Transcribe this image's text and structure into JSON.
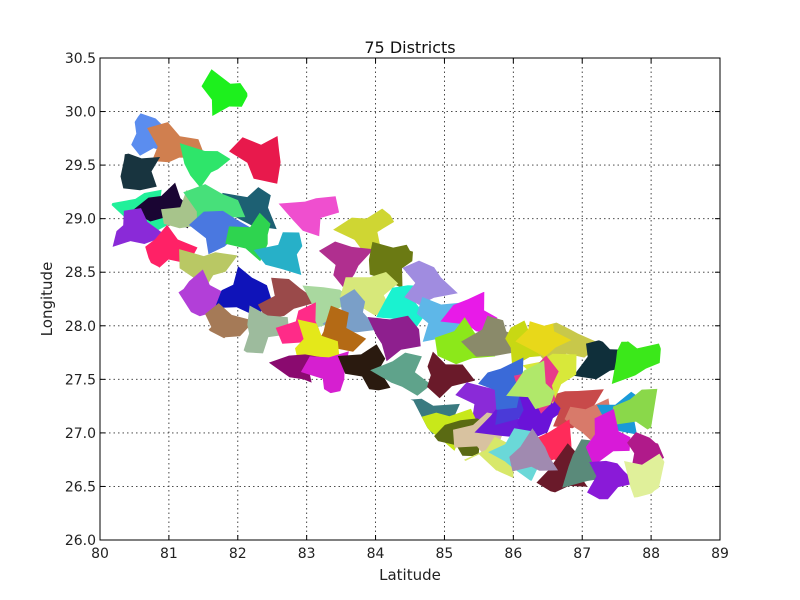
{
  "chart_data": {
    "type": "choropleth-map",
    "title": "75 Districts",
    "xlabel": "Latitude",
    "ylabel": "Longitude",
    "xlim": [
      80,
      89
    ],
    "ylim": [
      26.0,
      30.5
    ],
    "xticks": [
      "80",
      "81",
      "82",
      "83",
      "84",
      "85",
      "86",
      "87",
      "88",
      "89"
    ],
    "yticks": [
      "26.0",
      "26.5",
      "27.0",
      "27.5",
      "28.0",
      "28.5",
      "29.0",
      "29.5",
      "30.0",
      "30.5"
    ],
    "grid": true,
    "district_count": 75,
    "regions": [
      {
        "color": "#5b8def",
        "c": [
          80.75,
          29.75
        ]
      },
      {
        "color": "#d07f4f",
        "c": [
          81.05,
          29.67
        ]
      },
      {
        "color": "#1df01d",
        "c": [
          81.85,
          30.15
        ]
      },
      {
        "color": "#2ee56a",
        "c": [
          81.55,
          29.5
        ]
      },
      {
        "color": "#18343f",
        "c": [
          80.55,
          29.45
        ]
      },
      {
        "color": "#e8194c",
        "c": [
          82.35,
          29.6
        ]
      },
      {
        "color": "#1d6073",
        "c": [
          82.2,
          29.12
        ]
      },
      {
        "color": "#21f09a",
        "c": [
          80.65,
          29.1
        ]
      },
      {
        "color": "#1a0533",
        "c": [
          80.95,
          29.12
        ]
      },
      {
        "color": "#a7c48b",
        "c": [
          81.25,
          29.05
        ]
      },
      {
        "color": "#8a2ad8",
        "c": [
          80.45,
          28.9
        ]
      },
      {
        "color": "#ff2166",
        "c": [
          80.95,
          28.7
        ]
      },
      {
        "color": "#47e07a",
        "c": [
          81.65,
          29.08
        ]
      },
      {
        "color": "#4a78e0",
        "c": [
          81.75,
          28.87
        ]
      },
      {
        "color": "#b9c864",
        "c": [
          81.55,
          28.55
        ]
      },
      {
        "color": "#ef4fcf",
        "c": [
          83.1,
          29.05
        ]
      },
      {
        "color": "#cfd633",
        "c": [
          83.9,
          28.9
        ]
      },
      {
        "color": "#2ed44f",
        "c": [
          82.25,
          28.85
        ]
      },
      {
        "color": "#27b0c8",
        "c": [
          82.7,
          28.7
        ]
      },
      {
        "color": "#b23fd8",
        "c": [
          81.4,
          28.3
        ]
      },
      {
        "color": "#0f13b9",
        "c": [
          82.05,
          28.32
        ]
      },
      {
        "color": "#9a4a4a",
        "c": [
          82.65,
          28.25
        ]
      },
      {
        "color": "#a57a57",
        "c": [
          81.75,
          27.98
        ]
      },
      {
        "color": "#9dbb9d",
        "c": [
          82.35,
          27.95
        ]
      },
      {
        "color": "#a9d89f",
        "c": [
          83.25,
          28.18
        ]
      },
      {
        "color": "#b02f8f",
        "c": [
          83.55,
          28.58
        ]
      },
      {
        "color": "#6b7a13",
        "c": [
          84.25,
          28.58
        ]
      },
      {
        "color": "#d7e87a",
        "c": [
          84.0,
          28.3
        ]
      },
      {
        "color": "#1af2d0",
        "c": [
          84.45,
          28.2
        ]
      },
      {
        "color": "#ff2b88",
        "c": [
          82.95,
          28.0
        ]
      },
      {
        "color": "#7a9fc8",
        "c": [
          83.65,
          28.12
        ]
      },
      {
        "color": "#b46a15",
        "c": [
          83.45,
          27.95
        ]
      },
      {
        "color": "#e4e81a",
        "c": [
          83.1,
          27.85
        ]
      },
      {
        "color": "#a08ce0",
        "c": [
          84.7,
          28.4
        ]
      },
      {
        "color": "#5eb7e8",
        "c": [
          84.9,
          28.05
        ]
      },
      {
        "color": "#8e1f8e",
        "c": [
          84.25,
          27.9
        ]
      },
      {
        "color": "#8a0a6f",
        "c": [
          82.9,
          27.55
        ]
      },
      {
        "color": "#d61fd0",
        "c": [
          83.35,
          27.55
        ]
      },
      {
        "color": "#2a1a0f",
        "c": [
          83.9,
          27.6
        ]
      },
      {
        "color": "#5fa38b",
        "c": [
          84.45,
          27.55
        ]
      },
      {
        "color": "#e81ae8",
        "c": [
          85.45,
          28.1
        ]
      },
      {
        "color": "#8ce81a",
        "c": [
          85.3,
          27.85
        ]
      },
      {
        "color": "#8a8a6a",
        "c": [
          85.75,
          27.9
        ]
      },
      {
        "color": "#c8d813",
        "c": [
          86.15,
          27.85
        ]
      },
      {
        "color": "#6a1a2a",
        "c": [
          84.95,
          27.55
        ]
      },
      {
        "color": "#8a2ad8",
        "c": [
          85.55,
          27.3
        ]
      },
      {
        "color": "#3a7a80",
        "c": [
          84.75,
          27.15
        ]
      },
      {
        "color": "#c8e81a",
        "c": [
          85.05,
          27.05
        ]
      },
      {
        "color": "#5a6a13",
        "c": [
          85.3,
          26.95
        ]
      },
      {
        "color": "#d8c2a0",
        "c": [
          85.55,
          26.95
        ]
      },
      {
        "color": "#d8e86a",
        "c": [
          85.8,
          26.75
        ]
      },
      {
        "color": "#6a1ad8",
        "c": [
          85.95,
          27.1
        ]
      },
      {
        "color": "#4a3ad8",
        "c": [
          86.15,
          27.25
        ]
      },
      {
        "color": "#c8c84a",
        "c": [
          86.75,
          27.85
        ]
      },
      {
        "color": "#0f2f3a",
        "c": [
          87.3,
          27.7
        ]
      },
      {
        "color": "#3be81a",
        "c": [
          87.75,
          27.7
        ]
      },
      {
        "color": "#6a13d8",
        "c": [
          86.35,
          27.2
        ]
      },
      {
        "color": "#c84a4a",
        "c": [
          86.85,
          27.25
        ]
      },
      {
        "color": "#d87a6a",
        "c": [
          87.05,
          27.1
        ]
      },
      {
        "color": "#1a9ad8",
        "c": [
          87.55,
          27.15
        ]
      },
      {
        "color": "#8ad84a",
        "c": [
          87.85,
          27.2
        ]
      },
      {
        "color": "#ff2b5a",
        "c": [
          86.6,
          26.85
        ]
      },
      {
        "color": "#6a1a2a",
        "c": [
          86.75,
          26.62
        ]
      },
      {
        "color": "#5a8a7a",
        "c": [
          87.1,
          26.7
        ]
      },
      {
        "color": "#d81ad8",
        "c": [
          87.4,
          26.95
        ]
      },
      {
        "color": "#8a1ad8",
        "c": [
          87.4,
          26.6
        ]
      },
      {
        "color": "#b01a8a",
        "c": [
          87.95,
          26.85
        ]
      },
      {
        "color": "#e0f09a",
        "c": [
          87.9,
          26.6
        ]
      },
      {
        "color": "#d8e83a",
        "c": [
          86.5,
          27.55
        ]
      },
      {
        "color": "#3a6ad8",
        "c": [
          85.85,
          27.45
        ]
      },
      {
        "color": "#e83a8a",
        "c": [
          86.35,
          27.45
        ]
      },
      {
        "color": "#6ad8d8",
        "c": [
          86.05,
          26.8
        ]
      },
      {
        "color": "#b0e86a",
        "c": [
          86.3,
          27.4
        ]
      },
      {
        "color": "#a08ab0",
        "c": [
          86.3,
          26.75
        ]
      },
      {
        "color": "#e8d81a",
        "c": [
          86.45,
          27.9
        ]
      }
    ]
  }
}
